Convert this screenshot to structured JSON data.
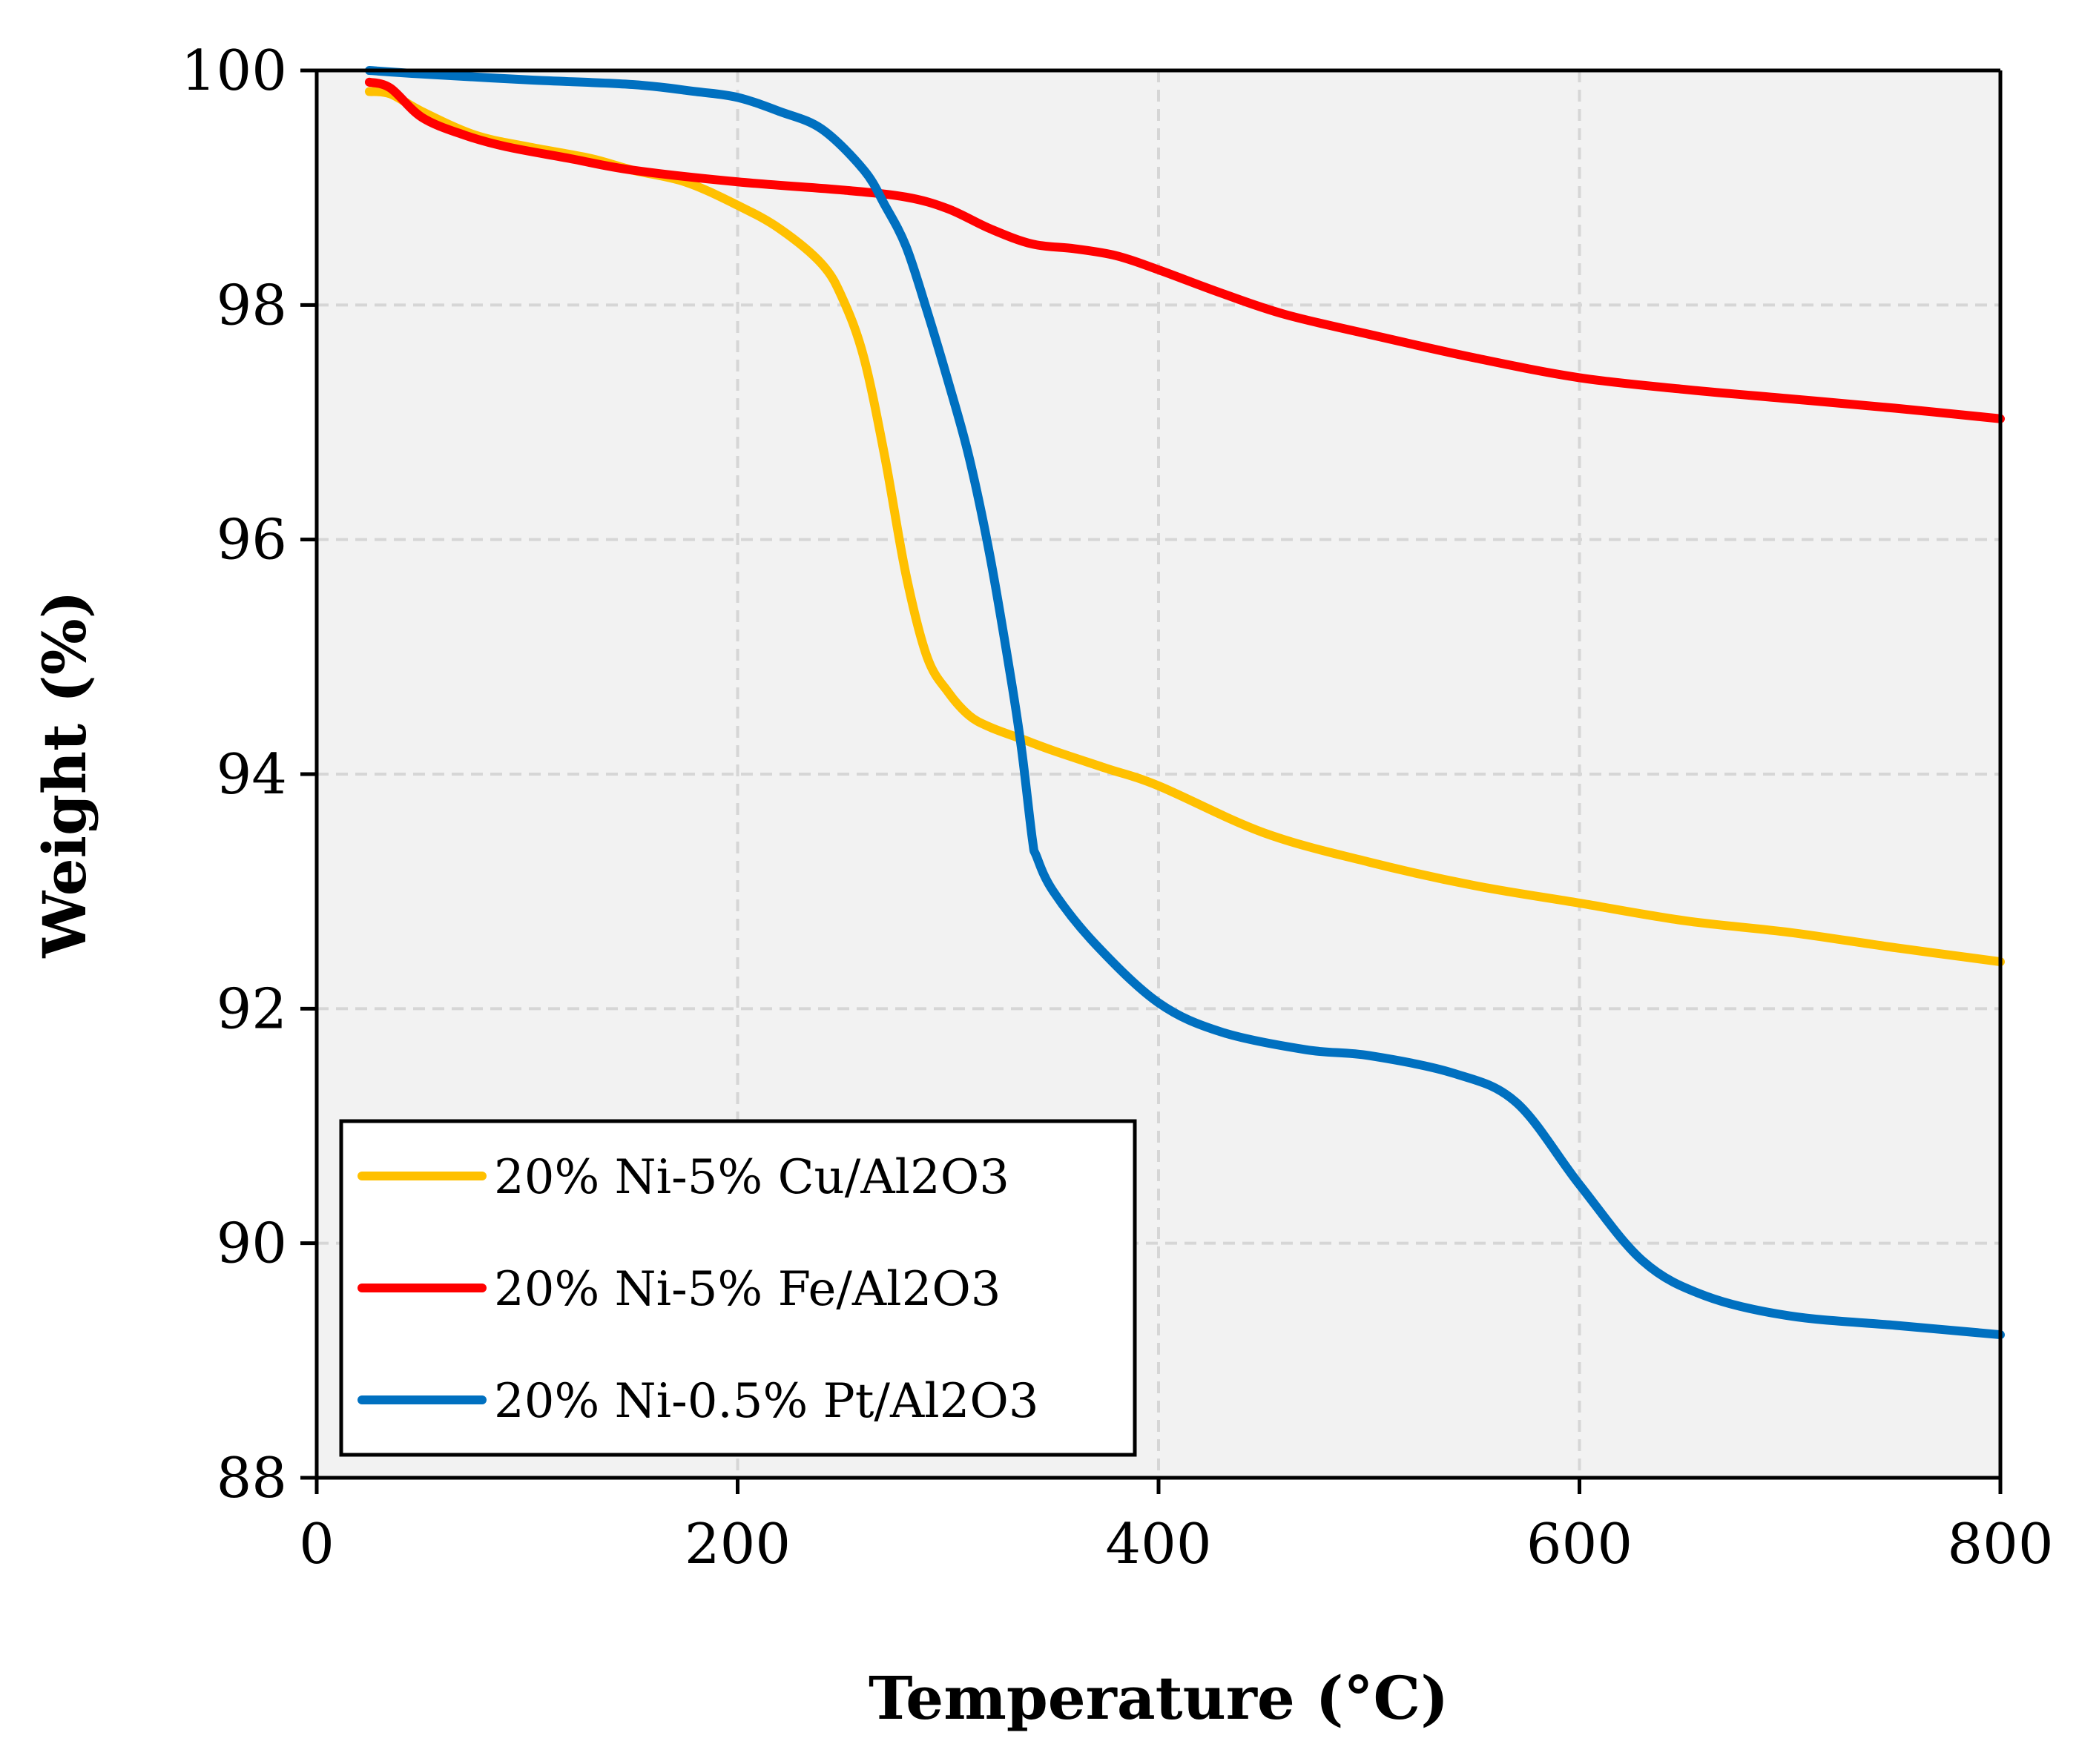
{
  "chart_data": {
    "type": "line",
    "title": "",
    "xlabel": "Temperature (°C)",
    "ylabel": "Weight (%)",
    "xlim": [
      0,
      800
    ],
    "ylim": [
      88,
      100
    ],
    "xticks": [
      "0",
      "200",
      "400",
      "600",
      "800"
    ],
    "yticks": [
      "88",
      "90",
      "92",
      "94",
      "96",
      "98",
      "100"
    ],
    "grid": true,
    "legend_position": "bottom-left",
    "series": [
      {
        "name": "20% Ni-5% Cu/Al2O3",
        "color": "#FFC000",
        "x": [
          25,
          35,
          50,
          75,
          100,
          130,
          150,
          175,
          200,
          220,
          240,
          250,
          260,
          270,
          280,
          290,
          300,
          310,
          320,
          335,
          350,
          375,
          400,
          450,
          500,
          550,
          600,
          650,
          700,
          750,
          800
        ],
        "y": [
          99.82,
          99.8,
          99.65,
          99.45,
          99.35,
          99.25,
          99.15,
          99.05,
          98.85,
          98.65,
          98.35,
          98.05,
          97.55,
          96.7,
          95.7,
          95.0,
          94.7,
          94.5,
          94.4,
          94.3,
          94.2,
          94.05,
          93.9,
          93.5,
          93.25,
          93.05,
          92.9,
          92.75,
          92.65,
          92.52,
          92.4
        ]
      },
      {
        "name": "20% Ni-5% Fe/Al2O3",
        "color": "#FF0000",
        "x": [
          25,
          35,
          50,
          70,
          90,
          120,
          150,
          200,
          250,
          280,
          300,
          320,
          340,
          360,
          380,
          400,
          430,
          460,
          500,
          550,
          600,
          650,
          700,
          750,
          800
        ],
        "y": [
          99.9,
          99.85,
          99.6,
          99.45,
          99.35,
          99.25,
          99.15,
          99.05,
          98.98,
          98.92,
          98.82,
          98.65,
          98.52,
          98.48,
          98.42,
          98.3,
          98.1,
          97.92,
          97.75,
          97.55,
          97.38,
          97.28,
          97.2,
          97.12,
          97.03
        ]
      },
      {
        "name": "20% Ni-0.5% Pt/Al2O3",
        "color": "#0070C0",
        "x": [
          25,
          50,
          100,
          150,
          180,
          200,
          220,
          240,
          260,
          270,
          280,
          290,
          300,
          310,
          320,
          330,
          335,
          340,
          342,
          350,
          370,
          400,
          430,
          470,
          500,
          540,
          570,
          600,
          630,
          660,
          700,
          750,
          800
        ],
        "y": [
          100,
          99.97,
          99.92,
          99.88,
          99.82,
          99.77,
          99.65,
          99.5,
          99.15,
          98.85,
          98.5,
          97.95,
          97.35,
          96.7,
          95.85,
          94.8,
          94.2,
          93.45,
          93.3,
          93.0,
          92.55,
          92.05,
          91.8,
          91.65,
          91.6,
          91.45,
          91.2,
          90.5,
          89.85,
          89.55,
          89.38,
          89.3,
          89.22
        ]
      }
    ]
  }
}
